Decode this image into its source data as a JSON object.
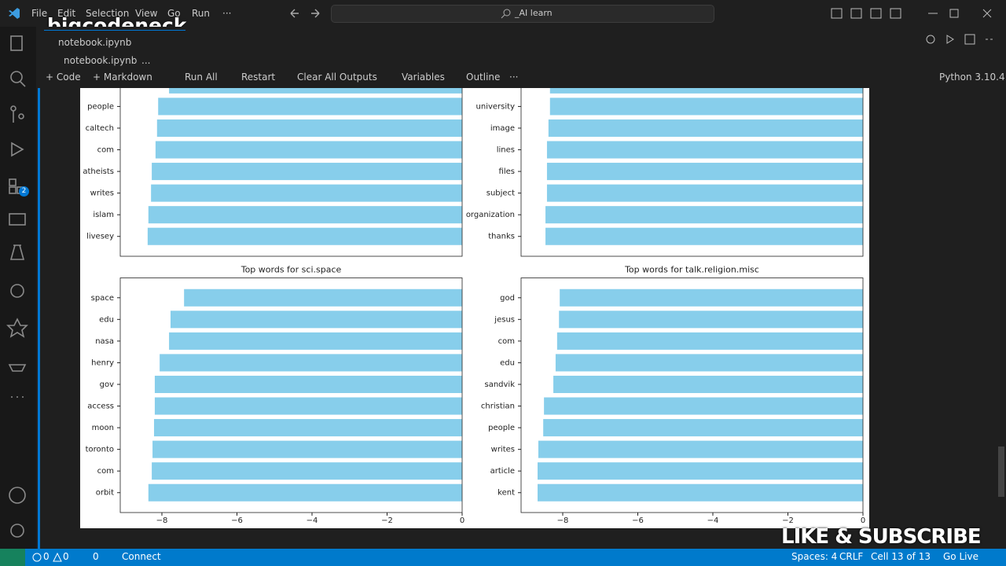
{
  "menu": [
    "File",
    "Edit",
    "Selection",
    "View",
    "Go",
    "Run",
    "···"
  ],
  "search": "_AI learn",
  "watermark": "bigcodeneck",
  "tab": "notebook.ipynb",
  "breadcrumb": [
    "notebook.ipynb",
    "..."
  ],
  "activity_badge": "2",
  "toolbar": [
    "Code",
    "Markdown",
    "Run All",
    "Restart",
    "Clear All Outputs",
    "Variables",
    "Outline",
    "···"
  ],
  "kernel": "Python 3.10.4",
  "status_bar": {
    "errors": "0",
    "warnings": "0",
    "ports": "0",
    "connect": "Connect",
    "spaces": "Spaces: 4",
    "eol": "CRLF",
    "cell": "Cell 13 of 13",
    "live": "Go Live"
  },
  "overlay": "LIKE & SUBSCRIBE",
  "chart_data": [
    {
      "type": "bar",
      "orientation": "horizontal",
      "color": "#87ceeb",
      "categories": [
        null,
        "people",
        "caltech",
        "com",
        "atheists",
        "writes",
        "islam",
        "livesey"
      ],
      "values": [
        -7.81,
        -8.1,
        -8.13,
        -8.17,
        -8.27,
        -8.29,
        -8.36,
        -8.38
      ],
      "xlim": [
        -9.11,
        0
      ]
    },
    {
      "type": "bar",
      "orientation": "horizontal",
      "color": "#87ceeb",
      "categories": [
        null,
        "university",
        "image",
        "lines",
        "files",
        "subject",
        "organization",
        "thanks"
      ],
      "values": [
        -8.34,
        -8.34,
        -8.38,
        -8.42,
        -8.42,
        -8.42,
        -8.46,
        -8.46
      ],
      "xlim": [
        -9.11,
        0
      ]
    },
    {
      "type": "bar",
      "orientation": "horizontal",
      "color": "#87ceeb",
      "title": "Top words for sci.space",
      "categories": [
        "space",
        "edu",
        "nasa",
        "henry",
        "gov",
        "access",
        "moon",
        "toronto",
        "com",
        "orbit"
      ],
      "values": [
        -7.41,
        -7.77,
        -7.81,
        -8.06,
        -8.19,
        -8.19,
        -8.21,
        -8.25,
        -8.27,
        -8.36
      ],
      "xlim": [
        -9.11,
        0
      ],
      "xticks": [
        {
          "value": -8,
          "label": "−8"
        },
        {
          "value": -6,
          "label": "−6"
        },
        {
          "value": -4,
          "label": "−4"
        },
        {
          "value": -2,
          "label": "−2"
        },
        0
      ]
    },
    {
      "type": "bar",
      "orientation": "horizontal",
      "color": "#87ceeb",
      "title": "Top words for talk.religion.misc",
      "categories": [
        "god",
        "jesus",
        "com",
        "edu",
        "sandvik",
        "christian",
        "people",
        "writes",
        "article",
        "kent"
      ],
      "values": [
        -8.08,
        -8.1,
        -8.15,
        -8.19,
        -8.25,
        -8.5,
        -8.52,
        -8.65,
        -8.67,
        -8.67
      ],
      "xlim": [
        -9.11,
        0
      ],
      "xticks": [
        {
          "value": -8,
          "label": "−8"
        },
        {
          "value": -6,
          "label": "−6"
        },
        {
          "value": -4,
          "label": "−4"
        },
        {
          "value": -2,
          "label": "−2"
        },
        0
      ]
    }
  ]
}
